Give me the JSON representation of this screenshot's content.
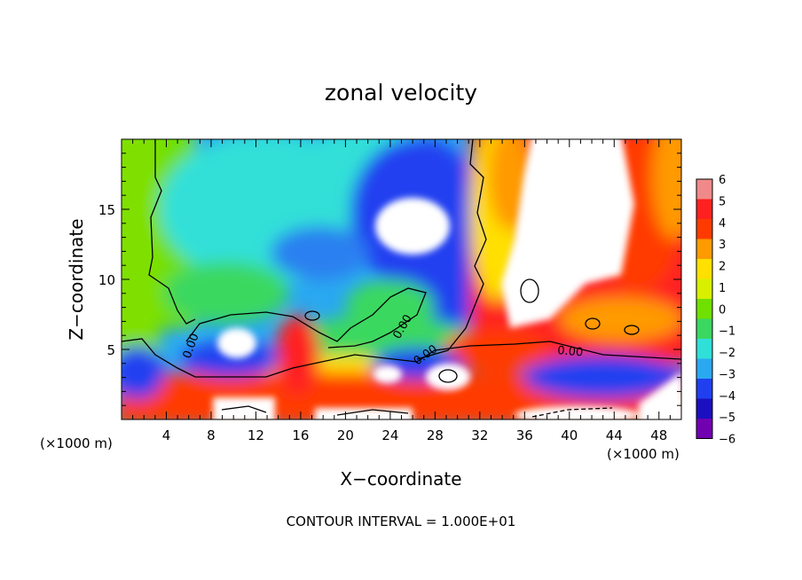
{
  "chart_data": {
    "type": "heatmap",
    "title": "zonal velocity",
    "xlabel": "X−coordinate",
    "ylabel": "Z−coordinate",
    "x_unit": "(×1000 m)",
    "x_unit_right": "(×1000 m)",
    "xlim": [
      0,
      50
    ],
    "ylim": [
      0,
      20
    ],
    "x_ticks": [
      4,
      8,
      12,
      16,
      20,
      24,
      28,
      32,
      36,
      40,
      44,
      48
    ],
    "y_ticks": [
      5,
      10,
      15
    ],
    "colorbar": {
      "levels": [
        6,
        5,
        4,
        3,
        2,
        1,
        0,
        -1,
        -2,
        -3,
        -4,
        -5,
        -6
      ],
      "labels": [
        "6",
        "5",
        "4",
        "3",
        "2",
        "1",
        "0",
        "−1",
        "−2",
        "−3",
        "−4",
        "−5",
        "−6"
      ],
      "colors": [
        "#f08a8a",
        "#ff2020",
        "#ff3a00",
        "#ff9a00",
        "#ffe000",
        "#d8f000",
        "#70e000",
        "#3ad860",
        "#30e0d8",
        "#2aa8f0",
        "#2040f0",
        "#1a10c0",
        "#7000b0"
      ]
    },
    "contour_labels": [
      "0.00",
      "0.00",
      "0.00",
      "0.00"
    ],
    "footer": "CONTOUR INTERVAL = 1.000E+01"
  }
}
